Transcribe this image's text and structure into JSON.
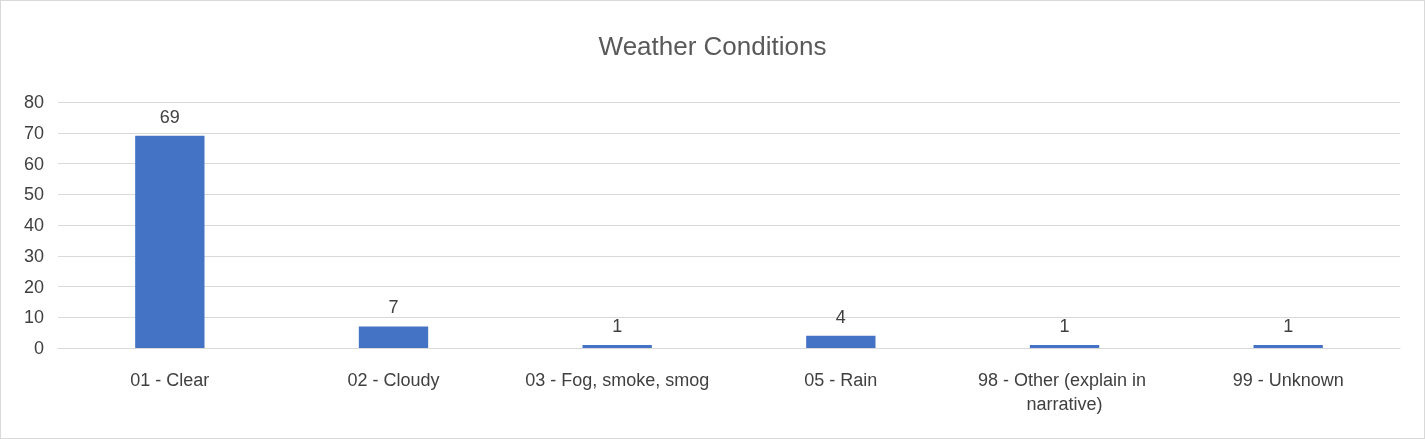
{
  "chart_data": {
    "type": "bar",
    "title": "Weather Conditions",
    "categories": [
      "01 - Clear",
      "02 - Cloudy",
      "03 - Fog, smoke, smog",
      "05 - Rain",
      "98 - Other (explain in narrative)",
      "99 - Unknown"
    ],
    "values": [
      69,
      7,
      1,
      4,
      1,
      1
    ],
    "color": "#4472c4",
    "ylim": [
      0,
      80
    ],
    "yticks": [
      0,
      10,
      20,
      30,
      40,
      50,
      60,
      70,
      80
    ],
    "grid": "y",
    "data_labels": true
  }
}
